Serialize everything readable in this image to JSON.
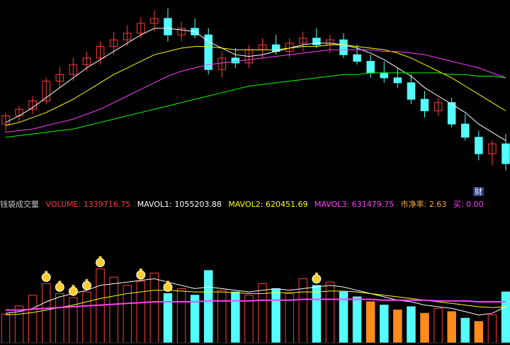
{
  "info_bar": {
    "title": "钱袋成交量",
    "volume_label": "VOLUME: 1339716.75",
    "mavol1_label": "MAVOL1: 1055203.88",
    "mavol2_label": "MAVOL2: 620451.69",
    "mavol3_label": "MAVOL3: 631479.75",
    "pb_label": "市净率: 2.63",
    "buy_label": "买: 0.00"
  },
  "badge": {
    "text": "财"
  },
  "colors": {
    "up": "#ff3b3b",
    "down": "#54ffff",
    "ma1": "#ffffff",
    "ma2": "#ffff00",
    "ma3": "#ff40ff",
    "ma4": "#00ff00",
    "vol_highlight": "#ff8c1a",
    "moneybag": "#ffcc33"
  },
  "chart_data": [
    {
      "type": "candlestick",
      "price_range": [
        0,
        100
      ],
      "candles": [
        {
          "o": 30,
          "h": 37,
          "l": 25,
          "c": 35
        },
        {
          "o": 35,
          "h": 41,
          "l": 31,
          "c": 39
        },
        {
          "o": 39,
          "h": 47,
          "l": 36,
          "c": 44
        },
        {
          "o": 44,
          "h": 58,
          "l": 42,
          "c": 56
        },
        {
          "o": 56,
          "h": 65,
          "l": 52,
          "c": 60
        },
        {
          "o": 60,
          "h": 70,
          "l": 56,
          "c": 66
        },
        {
          "o": 66,
          "h": 74,
          "l": 62,
          "c": 70
        },
        {
          "o": 70,
          "h": 80,
          "l": 66,
          "c": 77
        },
        {
          "o": 77,
          "h": 86,
          "l": 72,
          "c": 81
        },
        {
          "o": 81,
          "h": 90,
          "l": 77,
          "c": 85
        },
        {
          "o": 85,
          "h": 95,
          "l": 82,
          "c": 91
        },
        {
          "o": 91,
          "h": 99,
          "l": 86,
          "c": 94
        },
        {
          "o": 94,
          "h": 100,
          "l": 80,
          "c": 84
        },
        {
          "o": 84,
          "h": 92,
          "l": 80,
          "c": 88
        },
        {
          "o": 88,
          "h": 94,
          "l": 82,
          "c": 84
        },
        {
          "o": 84,
          "h": 88,
          "l": 60,
          "c": 63
        },
        {
          "o": 63,
          "h": 74,
          "l": 58,
          "c": 70
        },
        {
          "o": 70,
          "h": 76,
          "l": 64,
          "c": 67
        },
        {
          "o": 67,
          "h": 78,
          "l": 64,
          "c": 75
        },
        {
          "o": 75,
          "h": 82,
          "l": 70,
          "c": 78
        },
        {
          "o": 78,
          "h": 84,
          "l": 72,
          "c": 74
        },
        {
          "o": 74,
          "h": 82,
          "l": 70,
          "c": 79
        },
        {
          "o": 79,
          "h": 86,
          "l": 74,
          "c": 82
        },
        {
          "o": 82,
          "h": 88,
          "l": 76,
          "c": 78
        },
        {
          "o": 78,
          "h": 84,
          "l": 73,
          "c": 81
        },
        {
          "o": 81,
          "h": 85,
          "l": 70,
          "c": 72
        },
        {
          "o": 72,
          "h": 78,
          "l": 66,
          "c": 68
        },
        {
          "o": 68,
          "h": 72,
          "l": 58,
          "c": 61
        },
        {
          "o": 61,
          "h": 68,
          "l": 55,
          "c": 58
        },
        {
          "o": 58,
          "h": 64,
          "l": 52,
          "c": 55
        },
        {
          "o": 55,
          "h": 60,
          "l": 42,
          "c": 45
        },
        {
          "o": 45,
          "h": 50,
          "l": 34,
          "c": 38
        },
        {
          "o": 38,
          "h": 46,
          "l": 35,
          "c": 43
        },
        {
          "o": 43,
          "h": 46,
          "l": 28,
          "c": 30
        },
        {
          "o": 30,
          "h": 36,
          "l": 20,
          "c": 22
        },
        {
          "o": 22,
          "h": 26,
          "l": 8,
          "c": 12
        },
        {
          "o": 12,
          "h": 20,
          "l": 5,
          "c": 18
        },
        {
          "o": 18,
          "h": 24,
          "l": 2,
          "c": 6
        }
      ],
      "ma_lines": [
        {
          "name": "MA1",
          "values": [
            31,
            35,
            40,
            46,
            52,
            58,
            64,
            69,
            74,
            79,
            84,
            88,
            88,
            87,
            86,
            80,
            76,
            72,
            71,
            72,
            74,
            76,
            78,
            79,
            79,
            78,
            76,
            73,
            69,
            64,
            59,
            52,
            47,
            42,
            37,
            30,
            25,
            20
          ]
        },
        {
          "name": "MA2",
          "values": [
            29,
            31,
            34,
            37,
            41,
            45,
            50,
            55,
            60,
            64,
            68,
            72,
            74,
            76,
            77,
            77,
            76,
            75,
            75,
            75,
            75,
            76,
            77,
            77,
            78,
            78,
            77,
            76,
            75,
            73,
            70,
            66,
            62,
            58,
            53,
            48,
            43,
            38
          ]
        },
        {
          "name": "MA3",
          "values": [
            25,
            26,
            27,
            29,
            31,
            33,
            36,
            39,
            43,
            47,
            51,
            55,
            59,
            62,
            64,
            66,
            67,
            68,
            69,
            70,
            71,
            72,
            73,
            74,
            75,
            75,
            75,
            75,
            74,
            74,
            73,
            72,
            70,
            68,
            66,
            64,
            61,
            58
          ]
        },
        {
          "name": "MA4",
          "values": [
            22,
            23,
            24,
            25,
            26,
            27,
            29,
            31,
            33,
            35,
            37,
            39,
            41,
            43,
            45,
            47,
            49,
            51,
            53,
            54,
            55,
            56,
            57,
            58,
            59,
            60,
            60,
            61,
            61,
            61,
            61,
            61,
            61,
            60,
            60,
            59,
            59,
            58
          ]
        }
      ]
    },
    {
      "type": "bar",
      "title": "钱袋成交量",
      "series": [
        {
          "name": "VOLUME",
          "values": [
            35,
            45,
            58,
            72,
            60,
            55,
            62,
            90,
            80,
            70,
            75,
            85,
            60,
            66,
            58,
            88,
            64,
            62,
            58,
            72,
            66,
            60,
            78,
            70,
            74,
            62,
            56,
            50,
            46,
            40,
            44,
            36,
            42,
            38,
            30,
            26,
            34,
            62
          ]
        },
        {
          "name": "MAVOL1",
          "values": [
            36,
            38,
            42,
            50,
            56,
            60,
            64,
            70,
            72,
            74,
            76,
            78,
            74,
            70,
            66,
            68,
            66,
            64,
            62,
            64,
            66,
            64,
            66,
            68,
            70,
            68,
            64,
            60,
            56,
            52,
            50,
            46,
            44,
            42,
            38,
            34,
            36,
            44
          ]
        },
        {
          "name": "MAVOL2",
          "values": [
            34,
            35,
            37,
            40,
            43,
            46,
            50,
            54,
            57,
            60,
            62,
            64,
            64,
            63,
            62,
            62,
            62,
            61,
            60,
            60,
            61,
            61,
            62,
            62,
            63,
            63,
            62,
            60,
            58,
            56,
            54,
            52,
            50,
            48,
            46,
            44,
            43,
            44
          ]
        },
        {
          "name": "MAVOL3",
          "values": [
            40,
            40,
            41,
            42,
            43,
            44,
            45,
            46,
            47,
            48,
            49,
            50,
            50,
            50,
            50,
            51,
            51,
            51,
            51,
            52,
            52,
            52,
            53,
            53,
            53,
            53,
            53,
            53,
            52,
            52,
            52,
            52,
            51,
            51,
            51,
            50,
            50,
            50
          ]
        }
      ],
      "highlight_indices": [
        27,
        29,
        31,
        33,
        35
      ],
      "moneybag_indices": [
        3,
        4,
        5,
        6,
        7,
        10,
        12,
        23
      ]
    }
  ]
}
